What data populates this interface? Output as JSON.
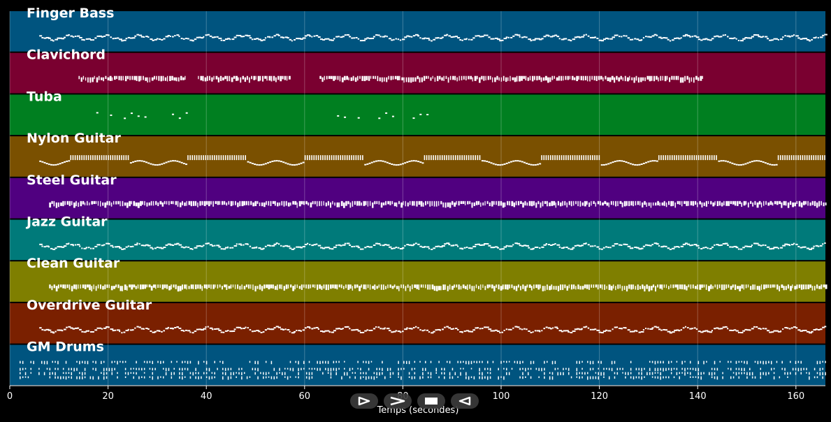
{
  "tracks": [
    {
      "name": "Finger Bass",
      "color": "#00547f",
      "start": 6,
      "end": 166,
      "pattern": "wave"
    },
    {
      "name": "Clavichord",
      "color": "#7a0030",
      "start": 14,
      "end": 141,
      "pattern": "blocks",
      "gaps": [
        [
          36,
          38
        ],
        [
          57,
          63
        ]
      ]
    },
    {
      "name": "Tuba",
      "color": "#007f20",
      "start": 12,
      "end": 85,
      "pattern": "sparse",
      "gaps": [
        [
          36,
          61
        ]
      ]
    },
    {
      "name": "Nylon Guitar",
      "color": "#7a5000",
      "start": 6,
      "end": 166,
      "pattern": "mixed"
    },
    {
      "name": "Steel Guitar",
      "color": "#500080",
      "start": 8,
      "end": 166,
      "pattern": "blocks"
    },
    {
      "name": "Jazz Guitar",
      "color": "#007a7a",
      "start": 6,
      "end": 166,
      "pattern": "wave"
    },
    {
      "name": "Clean Guitar",
      "color": "#7f7f00",
      "start": 8,
      "end": 166,
      "pattern": "blocks"
    },
    {
      "name": "Overdrive Guitar",
      "color": "#7a2000",
      "start": 6,
      "end": 166,
      "pattern": "wave"
    },
    {
      "name": "GM Drums",
      "color": "#00547f",
      "start": 2,
      "end": 166,
      "pattern": "drums"
    }
  ],
  "x_axis": {
    "label": "Temps (secondes)",
    "ticks": [
      "0",
      "20",
      "40",
      "60",
      "80",
      "100",
      "120",
      "140",
      "160"
    ],
    "min": 0,
    "max": 166
  },
  "controls": {
    "play": "play-icon",
    "fast_forward": "fast-forward-icon",
    "stop": "stop-icon",
    "rewind": "rewind-icon"
  },
  "colors": {
    "background": "#000000",
    "note": "#ffffff",
    "grid": "#ffffff"
  }
}
